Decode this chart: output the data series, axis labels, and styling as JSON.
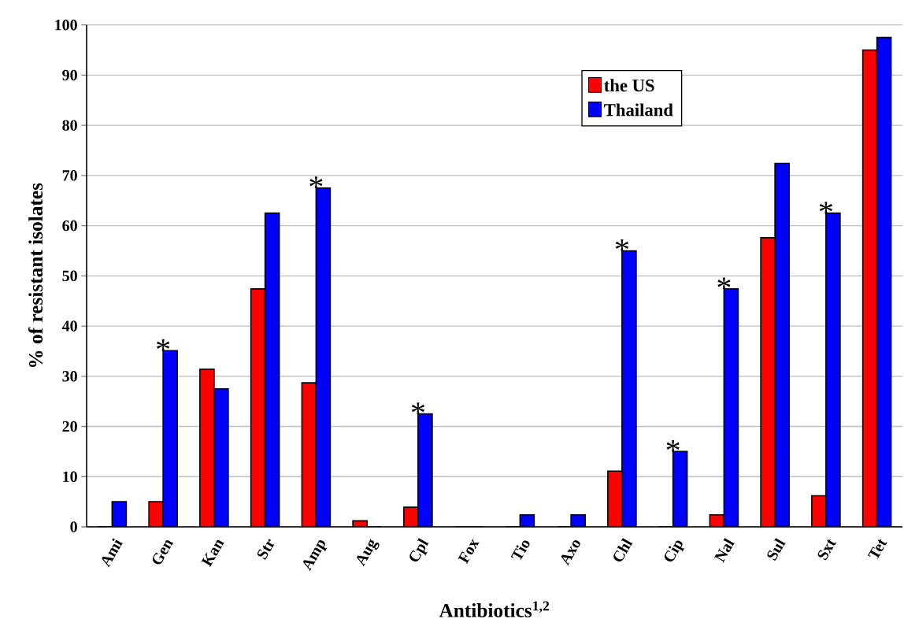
{
  "chart_data": {
    "type": "bar",
    "xlabel": "Antibiotics$^{1,2}$",
    "ylabel": "% of resistant isolates",
    "categories": [
      "Ami",
      "Gen",
      "Kan",
      "Str",
      "Amp",
      "Aug",
      "Cpl",
      "Fox",
      "Tio",
      "Axo",
      "Chl",
      "Cip",
      "Nal",
      "Sul",
      "Sxt",
      "Tet"
    ],
    "series": [
      {
        "name": "the US",
        "color": "#ff0000",
        "values": [
          0,
          5,
          31.4,
          47.4,
          28.7,
          1.2,
          3.9,
          0,
          0,
          0,
          11.1,
          0,
          2.4,
          57.6,
          6.2,
          95
        ]
      },
      {
        "name": "Thailand",
        "color": "#0000ff",
        "values": [
          5,
          35.1,
          27.5,
          62.5,
          67.5,
          0,
          22.5,
          0,
          2.4,
          2.4,
          55,
          15,
          47.4,
          72.4,
          62.5,
          97.5
        ]
      }
    ],
    "ylim": [
      0,
      100
    ],
    "yticks": [
      0,
      10,
      20,
      30,
      40,
      50,
      60,
      70,
      80,
      90,
      100
    ],
    "grid": "y",
    "legend": "top right",
    "annotations": [
      {
        "text": "*",
        "x": "Gen",
        "y": 35.1
      },
      {
        "text": "*",
        "x": "Amp",
        "y": 67.5
      },
      {
        "text": "*",
        "x": "Cpl",
        "y": 22.5
      },
      {
        "text": "*",
        "x": "Chl",
        "y": 55
      },
      {
        "text": "*",
        "x": "Cip",
        "y": 15
      },
      {
        "text": "*",
        "x": "Nal",
        "y": 47.4
      },
      {
        "text": "*",
        "x": "Sxt",
        "y": 62.5
      }
    ]
  }
}
